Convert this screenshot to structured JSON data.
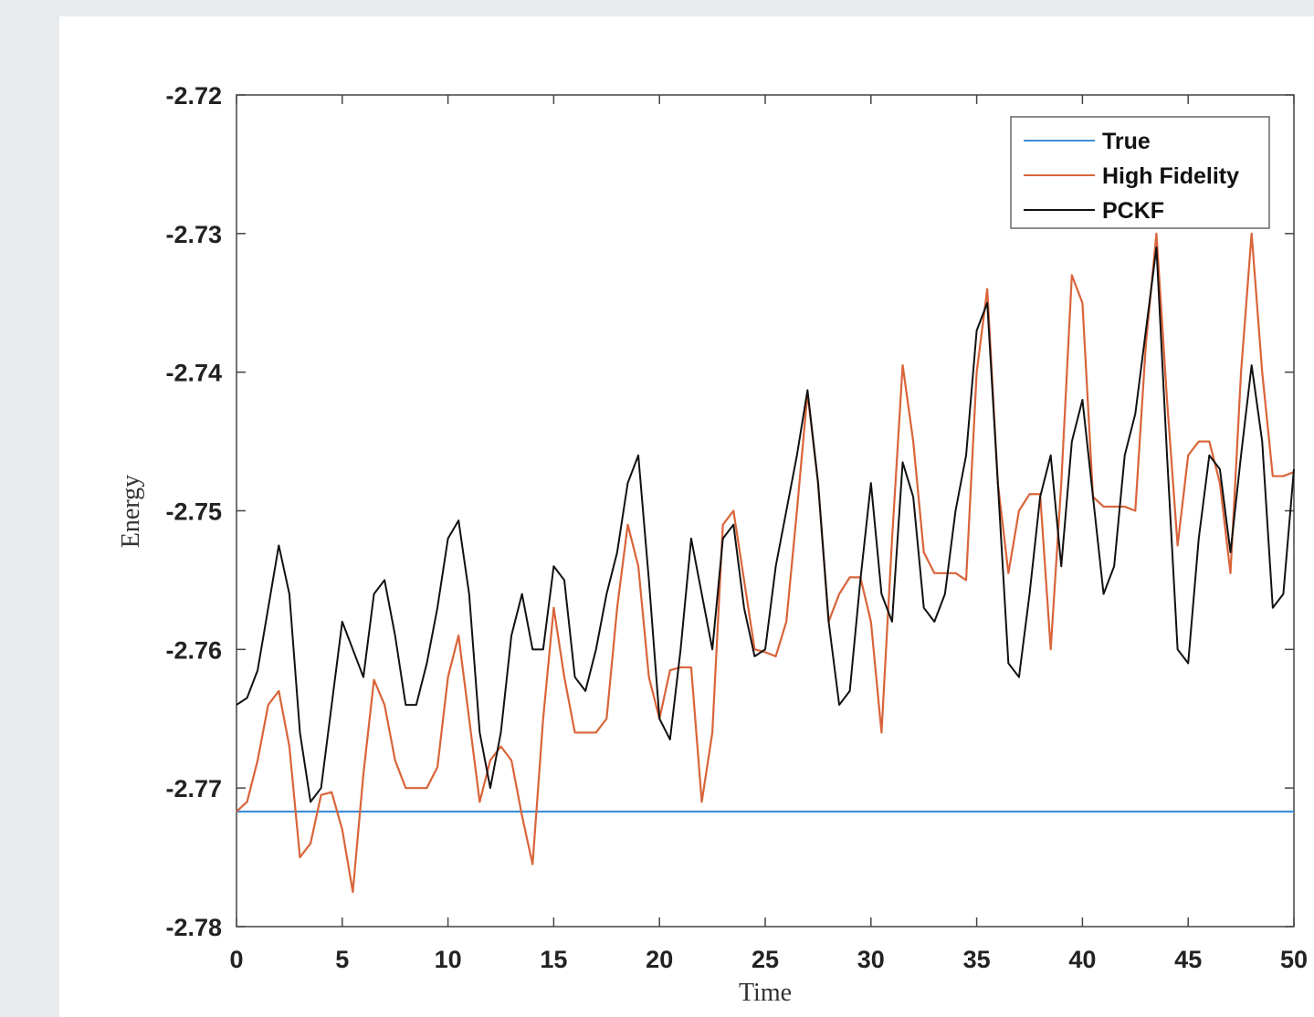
{
  "chart_data": {
    "type": "line",
    "x_label": "Time",
    "y_label": "Energy",
    "x": [
      0,
      0.5,
      1,
      1.5,
      2,
      2.5,
      3,
      3.5,
      4,
      4.5,
      5,
      5.5,
      6,
      6.5,
      7,
      7.5,
      8,
      8.5,
      9,
      9.5,
      10,
      10.5,
      11,
      11.5,
      12,
      12.5,
      13,
      13.5,
      14,
      14.5,
      15,
      15.5,
      16,
      16.5,
      17,
      17.5,
      18,
      18.5,
      19,
      19.5,
      20,
      20.5,
      21,
      21.5,
      22,
      22.5,
      23,
      23.5,
      24,
      24.5,
      25,
      25.5,
      26,
      26.5,
      27,
      27.5,
      28,
      28.5,
      29,
      29.5,
      30,
      30.5,
      31,
      31.5,
      32,
      32.5,
      33,
      33.5,
      34,
      34.5,
      35,
      35.5,
      36,
      36.5,
      37,
      37.5,
      38,
      38.5,
      39,
      39.5,
      40,
      40.5,
      41,
      41.5,
      42,
      42.5,
      43,
      43.5,
      44,
      44.5,
      45,
      45.5,
      46,
      46.5,
      47,
      47.5,
      48,
      48.5,
      49,
      49.5,
      50
    ],
    "series": [
      {
        "name": "True",
        "color": "#3f8fd6",
        "x": [
          0,
          50
        ],
        "values": [
          -2.7717,
          -2.7717
        ]
      },
      {
        "name": "High Fidelity",
        "color": "#d9643a",
        "values": [
          -2.7717,
          -2.771,
          -2.768,
          -2.764,
          -2.763,
          -2.767,
          -2.775,
          -2.774,
          -2.7705,
          -2.7703,
          -2.773,
          -2.7775,
          -2.769,
          -2.7622,
          -2.764,
          -2.768,
          -2.77,
          -2.77,
          -2.77,
          -2.7685,
          -2.762,
          -2.759,
          -2.765,
          -2.771,
          -2.768,
          -2.767,
          -2.768,
          -2.772,
          -2.7755,
          -2.765,
          -2.757,
          -2.762,
          -2.766,
          -2.766,
          -2.766,
          -2.765,
          -2.757,
          -2.751,
          -2.754,
          -2.762,
          -2.765,
          -2.7615,
          -2.7613,
          -2.7613,
          -2.771,
          -2.766,
          -2.751,
          -2.75,
          -2.755,
          -2.76,
          -2.7602,
          -2.7605,
          -2.758,
          -2.75,
          -2.7415,
          -2.748,
          -2.758,
          -2.756,
          -2.7548,
          -2.7548,
          -2.758,
          -2.766,
          -2.752,
          -2.7395,
          -2.745,
          -2.753,
          -2.7545,
          -2.7545,
          -2.7545,
          -2.755,
          -2.74,
          -2.734,
          -2.748,
          -2.7545,
          -2.75,
          -2.7488,
          -2.7488,
          -2.76,
          -2.748,
          -2.733,
          -2.735,
          -2.749,
          -2.7497,
          -2.7497,
          -2.7497,
          -2.75,
          -2.738,
          -2.73,
          -2.742,
          -2.7525,
          -2.746,
          -2.745,
          -2.745,
          -2.748,
          -2.7545,
          -2.74,
          -2.73,
          -2.74,
          -2.7475,
          -2.7475,
          -2.7472
        ]
      },
      {
        "name": "PCKF",
        "color": "#111111",
        "values": [
          -2.764,
          -2.7635,
          -2.7615,
          -2.757,
          -2.7525,
          -2.756,
          -2.766,
          -2.771,
          -2.77,
          -2.764,
          -2.758,
          -2.76,
          -2.762,
          -2.756,
          -2.755,
          -2.759,
          -2.764,
          -2.764,
          -2.761,
          -2.757,
          -2.752,
          -2.7507,
          -2.756,
          -2.766,
          -2.77,
          -2.766,
          -2.759,
          -2.756,
          -2.76,
          -2.76,
          -2.754,
          -2.755,
          -2.762,
          -2.763,
          -2.76,
          -2.756,
          -2.753,
          -2.748,
          -2.746,
          -2.755,
          -2.765,
          -2.7665,
          -2.76,
          -2.752,
          -2.756,
          -2.76,
          -2.752,
          -2.751,
          -2.757,
          -2.7605,
          -2.76,
          -2.754,
          -2.75,
          -2.746,
          -2.7413,
          -2.748,
          -2.758,
          -2.764,
          -2.763,
          -2.755,
          -2.748,
          -2.756,
          -2.758,
          -2.7465,
          -2.749,
          -2.757,
          -2.758,
          -2.756,
          -2.75,
          -2.746,
          -2.737,
          -2.735,
          -2.748,
          -2.761,
          -2.762,
          -2.756,
          -2.749,
          -2.746,
          -2.754,
          -2.745,
          -2.742,
          -2.749,
          -2.756,
          -2.754,
          -2.746,
          -2.743,
          -2.737,
          -2.731,
          -2.746,
          -2.76,
          -2.761,
          -2.752,
          -2.746,
          -2.747,
          -2.753,
          -2.746,
          -2.7395,
          -2.745,
          -2.757,
          -2.756,
          -2.747
        ]
      }
    ],
    "xlim": [
      0,
      50
    ],
    "xticks": [
      0,
      5,
      10,
      15,
      20,
      25,
      30,
      35,
      40,
      45,
      50
    ],
    "ylim": [
      -2.78,
      -2.72
    ],
    "yticks": [
      -2.78,
      -2.77,
      -2.76,
      -2.75,
      -2.74,
      -2.73,
      -2.72
    ],
    "legend": "upper right",
    "grid": false
  }
}
